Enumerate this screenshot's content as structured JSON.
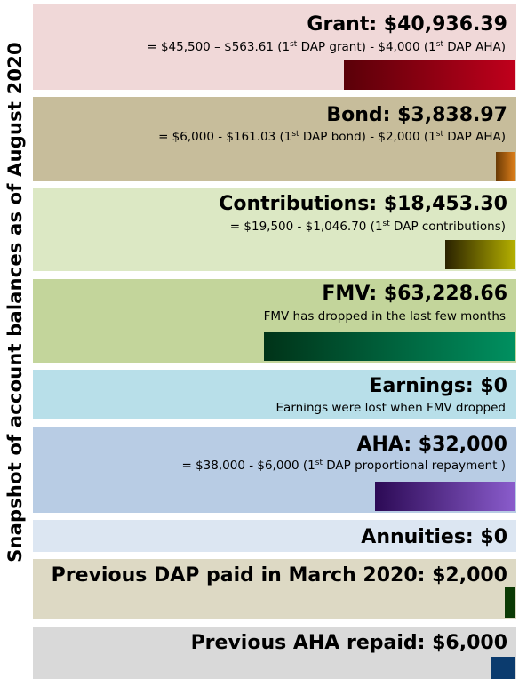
{
  "side_title": "Snapshot of account balances as of August 2020",
  "panels": [
    {
      "id": "grant",
      "title": "Grant: $40,936.39",
      "detail": {
        "a": "= $45,500 – $563.61 (1",
        "b": " DAP grant) - $4,000 (1",
        "c": " DAP AHA)"
      },
      "panel_color": "#f0d8d8",
      "bar_colors": [
        "#5a0008",
        "#c0001c"
      ],
      "bar_level": 0.355
    },
    {
      "id": "bond",
      "title": "Bond: $3,838.97",
      "detail": {
        "a": "= $6,000 - $161.03 (1",
        "b": " DAP bond) - $2,000 (1",
        "c": " DAP AHA)"
      },
      "panel_color": "#c7bd9b",
      "bar_colors": [
        "#6a3a05",
        "#e0801a"
      ],
      "bar_level": 0.04
    },
    {
      "id": "contributions",
      "title": "Contributions: $18,453.30",
      "detail": {
        "a": "= $19,500 - $1,046.70 (1",
        "b": " DAP contributions)"
      },
      "panel_color": "#dce8c4",
      "bar_colors": [
        "#2a2200",
        "#b5b000"
      ],
      "bar_level": 0.145
    },
    {
      "id": "fmv",
      "title": "FMV: $63,228.66",
      "detail": {
        "a": "FMV has dropped in the last few months"
      },
      "panel_color": "#c3d59b",
      "bar_colors": [
        "#003318",
        "#009060"
      ],
      "bar_level": 0.52
    },
    {
      "id": "earnings",
      "title": "Earnings: $0",
      "detail": {
        "a": "Earnings were lost when FMV dropped"
      },
      "panel_color": "#b8dfe9"
    },
    {
      "id": "aha",
      "title": "AHA: $32,000",
      "detail": {
        "a": "= $38,000 - $6,000 (1",
        "b": " DAP proportional repayment )"
      },
      "panel_color": "#b8cce4",
      "bar_colors": [
        "#2c0a55",
        "#8a5ccc"
      ],
      "bar_level": 0.29
    },
    {
      "id": "annuities",
      "title": "Annuities: $0",
      "panel_color": "#dce6f2"
    },
    {
      "id": "previous-dap",
      "title": "Previous DAP paid in March 2020: $2,000",
      "panel_color": "#ddd9c4",
      "bar_colors": [
        "#0b3a05",
        "#0b3a05"
      ],
      "bar_level": 0.022
    },
    {
      "id": "previous-aha",
      "title": "Previous AHA repaid: $6,000",
      "panel_color": "#d9d9d9",
      "bar_colors": [
        "#0b3b6e",
        "#0b3b6e"
      ],
      "bar_level": 0.052
    }
  ],
  "ordinal_suffix": "st"
}
